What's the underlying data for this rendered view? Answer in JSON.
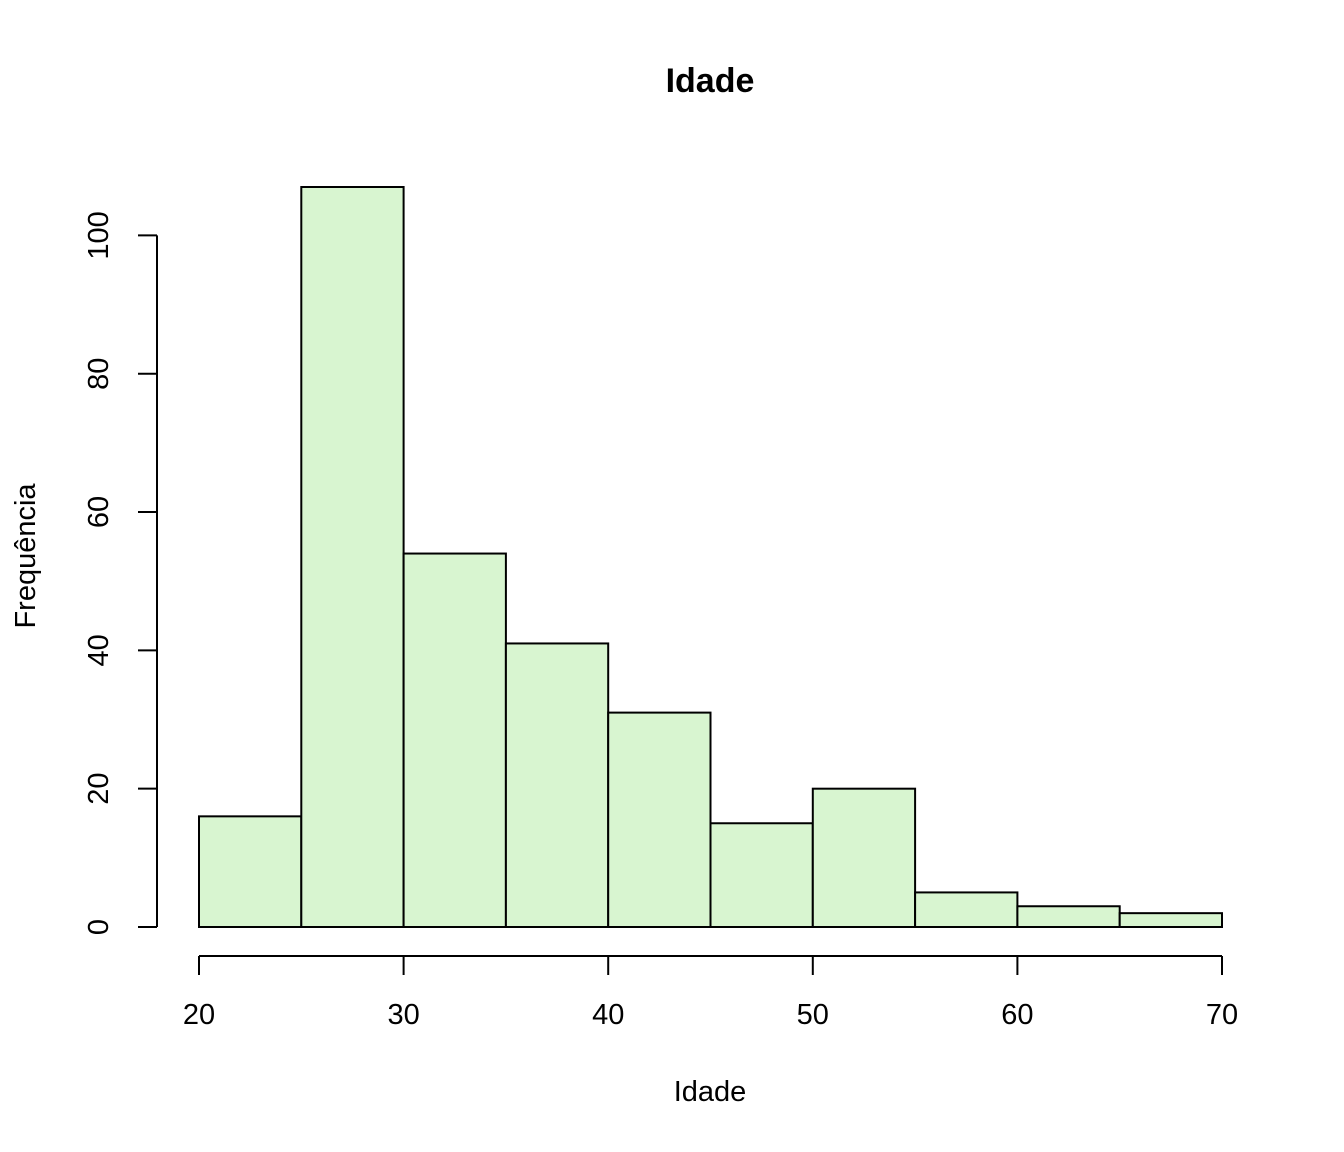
{
  "chart_data": {
    "type": "bar",
    "title": "Idade",
    "xlabel": "Idade",
    "ylabel": "Frequência",
    "bins": [
      {
        "from": 20,
        "to": 25,
        "count": 16
      },
      {
        "from": 25,
        "to": 30,
        "count": 107
      },
      {
        "from": 30,
        "to": 35,
        "count": 54
      },
      {
        "from": 35,
        "to": 40,
        "count": 41
      },
      {
        "from": 40,
        "to": 45,
        "count": 31
      },
      {
        "from": 45,
        "to": 50,
        "count": 15
      },
      {
        "from": 50,
        "to": 55,
        "count": 20
      },
      {
        "from": 55,
        "to": 60,
        "count": 5
      },
      {
        "from": 60,
        "to": 65,
        "count": 3
      },
      {
        "from": 65,
        "to": 70,
        "count": 2
      }
    ],
    "xlim": [
      20,
      70
    ],
    "ylim": [
      0,
      107
    ],
    "x_ticks": [
      20,
      30,
      40,
      50,
      60,
      70
    ],
    "y_ticks": [
      0,
      20,
      40,
      60,
      80,
      100
    ],
    "bar_color": "#d8f5d0",
    "edge_color": "#000000",
    "grid": false
  }
}
